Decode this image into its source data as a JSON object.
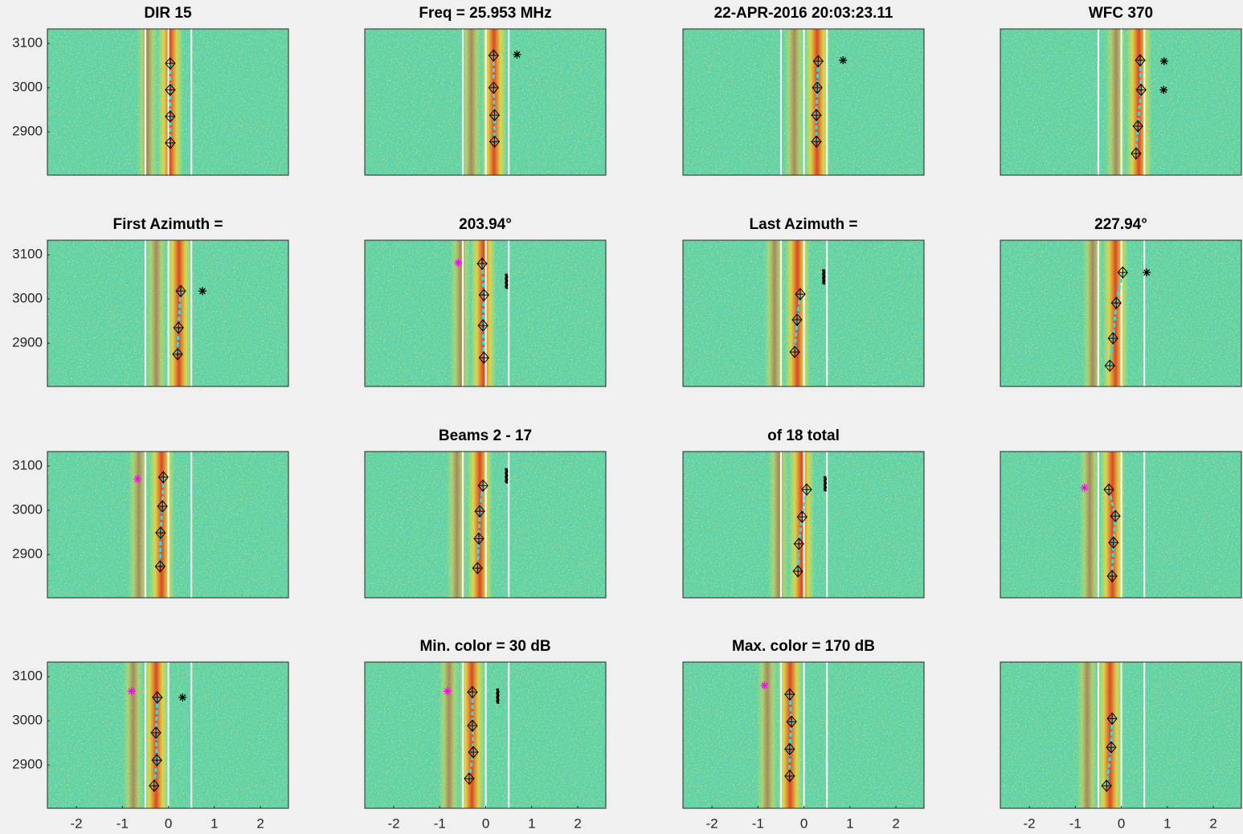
{
  "chart_data": [
    {
      "type": "scatter",
      "title": "DIR 15",
      "xlim": [
        -2.63,
        2.61
      ],
      "ylim": [
        2802,
        3133
      ],
      "yticks": [
        2900,
        3000,
        3100
      ],
      "vlines": [
        -0.5,
        0,
        0.5
      ],
      "vline_color": "#ffffff",
      "x": [
        0.04,
        0.04,
        0.04,
        0.04
      ],
      "y": [
        3055,
        2995,
        2935,
        2875
      ],
      "color": "#000000",
      "line_color": "#3fd6e6"
    },
    {
      "type": "scatter",
      "title": "Freq = 25.953 MHz",
      "xlim": [
        -2.63,
        2.61
      ],
      "ylim": [
        2802,
        3133
      ],
      "vlines": [
        -0.5,
        0,
        0.5
      ],
      "vline_color": "#ffffff",
      "x": [
        0.17,
        0.17,
        0.19,
        0.19
      ],
      "y": [
        3073,
        3000,
        2938,
        2878
      ],
      "color": "#000000",
      "line_color": "#3fd6e6",
      "markers": [
        {
          "marker": "asterisk",
          "color": "#000000",
          "x": [
            0.68
          ],
          "y": [
            3075
          ]
        }
      ]
    },
    {
      "type": "scatter",
      "title": "22-APR-2016 20:03:23.11",
      "xlim": [
        -2.63,
        2.61
      ],
      "ylim": [
        2802,
        3133
      ],
      "vlines": [
        -0.5,
        0,
        0.5
      ],
      "vline_color": "#ffffff",
      "x": [
        0.31,
        0.29,
        0.27,
        0.27
      ],
      "y": [
        3060,
        3000,
        2938,
        2878
      ],
      "color": "#000000",
      "line_color": "#3fd6e6",
      "markers": [
        {
          "marker": "asterisk",
          "color": "#000000",
          "x": [
            0.85
          ],
          "y": [
            3062
          ]
        }
      ]
    },
    {
      "type": "scatter",
      "title": "WFC 370",
      "xlim": [
        -2.63,
        2.61
      ],
      "ylim": [
        2802,
        3133
      ],
      "vlines": [
        -0.5,
        0,
        0.5
      ],
      "vline_color": "#ffffff",
      "x": [
        0.41,
        0.43,
        0.36,
        0.32
      ],
      "y": [
        3062,
        2995,
        2913,
        2851
      ],
      "color": "#000000",
      "line_color": "#3fd6e6",
      "markers": [
        {
          "marker": "asterisk",
          "color": "#000000",
          "x": [
            0.93,
            0.92
          ],
          "y": [
            3060,
            2995
          ]
        }
      ]
    },
    {
      "type": "scatter",
      "title": "First Azimuth  =",
      "xlim": [
        -2.63,
        2.61
      ],
      "ylim": [
        2802,
        3133
      ],
      "yticks": [
        2900,
        3000,
        3100
      ],
      "vlines": [
        -0.5,
        0,
        0.5
      ],
      "vline_color": "#ffffff",
      "x": [
        0.27,
        0.22,
        0.2
      ],
      "y": [
        3018,
        2935,
        2875
      ],
      "color": "#000000",
      "line_color": "#3fd6e6",
      "markers": [
        {
          "marker": "asterisk",
          "color": "#000000",
          "x": [
            0.74
          ],
          "y": [
            3018
          ]
        }
      ]
    },
    {
      "type": "scatter",
      "title": "203.94°",
      "xlim": [
        -2.63,
        2.61
      ],
      "ylim": [
        2802,
        3133
      ],
      "vlines": [
        -0.5,
        0,
        0.5
      ],
      "vline_color": "#ffffff",
      "x": [
        -0.08,
        -0.04,
        -0.06,
        -0.04
      ],
      "y": [
        3080,
        3009,
        2940,
        2867
      ],
      "color": "#000000",
      "line_color": "#3fd6e6",
      "markers": [
        {
          "marker": "asterisk",
          "color": "#ff00ff",
          "x": [
            -0.6
          ],
          "y": [
            3082
          ]
        },
        {
          "marker": "dot",
          "color": "#000000",
          "x": [
            0.45
          ],
          "y": [
            3040
          ]
        }
      ]
    },
    {
      "type": "scatter",
      "title": "Last Azimuth  =",
      "xlim": [
        -2.63,
        2.61
      ],
      "ylim": [
        2802,
        3133
      ],
      "vlines": [
        -0.5,
        0,
        0.5
      ],
      "vline_color": "#ffffff",
      "x": [
        -0.08,
        -0.15,
        -0.2
      ],
      "y": [
        3011,
        2953,
        2880
      ],
      "color": "#000000",
      "line_color": "#3fd6e6",
      "markers": [
        {
          "marker": "dot",
          "color": "#000000",
          "x": [
            0.43
          ],
          "y": [
            3050
          ]
        }
      ]
    },
    {
      "type": "scatter",
      "title": "227.94°",
      "xlim": [
        -2.63,
        2.61
      ],
      "ylim": [
        2802,
        3133
      ],
      "vlines": [
        -0.5,
        0,
        0.5
      ],
      "vline_color": "#ffffff",
      "x": [
        0.03,
        -0.11,
        -0.18,
        -0.25
      ],
      "y": [
        3060,
        2991,
        2911,
        2849
      ],
      "color": "#000000",
      "line_color": "#3fd6e6",
      "markers": [
        {
          "marker": "asterisk",
          "color": "#000000",
          "x": [
            0.55
          ],
          "y": [
            3060
          ]
        }
      ]
    },
    {
      "type": "scatter",
      "xlim": [
        -2.63,
        2.61
      ],
      "ylim": [
        2802,
        3133
      ],
      "yticks": [
        2900,
        3000,
        3100
      ],
      "vlines": [
        -0.5,
        0,
        0.5
      ],
      "vline_color": "#ffffff",
      "x": [
        -0.11,
        -0.13,
        -0.17,
        -0.18
      ],
      "y": [
        3075,
        3009,
        2949,
        2873
      ],
      "color": "#000000",
      "line_color": "#3fd6e6",
      "markers": [
        {
          "marker": "asterisk",
          "color": "#ff00ff",
          "x": [
            -0.67
          ],
          "y": [
            3071
          ]
        }
      ]
    },
    {
      "type": "scatter",
      "title": "Beams 2 - 17",
      "xlim": [
        -2.63,
        2.61
      ],
      "ylim": [
        2802,
        3133
      ],
      "vlines": [
        -0.5,
        0,
        0.5
      ],
      "vline_color": "#ffffff",
      "x": [
        -0.06,
        -0.13,
        -0.15,
        -0.18
      ],
      "y": [
        3056,
        2998,
        2936,
        2869
      ],
      "color": "#000000",
      "line_color": "#3fd6e6",
      "markers": [
        {
          "marker": "dot",
          "color": "#000000",
          "x": [
            0.45
          ],
          "y": [
            3078
          ]
        }
      ]
    },
    {
      "type": "scatter",
      "title": "of 18 total",
      "xlim": [
        -2.63,
        2.61
      ],
      "ylim": [
        2802,
        3133
      ],
      "vlines": [
        -0.5,
        0,
        0.5
      ],
      "vline_color": "#ffffff",
      "x": [
        0.06,
        -0.04,
        -0.11,
        -0.13
      ],
      "y": [
        3047,
        2985,
        2924,
        2862
      ],
      "color": "#000000",
      "line_color": "#3fd6e6",
      "markers": [
        {
          "marker": "dot",
          "color": "#000000",
          "x": [
            0.46
          ],
          "y": [
            3060
          ]
        }
      ]
    },
    {
      "type": "scatter",
      "xlim": [
        -2.63,
        2.61
      ],
      "ylim": [
        2802,
        3133
      ],
      "vlines": [
        -0.5,
        0,
        0.5
      ],
      "vline_color": "#ffffff",
      "x": [
        -0.27,
        -0.13,
        -0.17,
        -0.2
      ],
      "y": [
        3047,
        2987,
        2927,
        2851
      ],
      "color": "#000000",
      "line_color": "#3fd6e6",
      "markers": [
        {
          "marker": "asterisk",
          "color": "#ff00ff",
          "x": [
            -0.8
          ],
          "y": [
            3051
          ]
        }
      ]
    },
    {
      "type": "scatter",
      "xlim": [
        -2.63,
        2.61
      ],
      "ylim": [
        2802,
        3133
      ],
      "yticks": [
        2900,
        3000,
        3100
      ],
      "xticks": [
        -2,
        -1,
        0,
        1,
        2
      ],
      "vlines": [
        -0.5,
        0,
        0.5
      ],
      "vline_color": "#ffffff",
      "x": [
        -0.24,
        -0.27,
        -0.25,
        -0.31
      ],
      "y": [
        3053,
        2973,
        2911,
        2853
      ],
      "color": "#000000",
      "line_color": "#3fd6e6",
      "markers": [
        {
          "marker": "asterisk",
          "color": "#000000",
          "x": [
            0.31
          ],
          "y": [
            3053
          ]
        },
        {
          "marker": "asterisk",
          "color": "#ff00ff",
          "x": [
            -0.8
          ],
          "y": [
            3067
          ]
        }
      ]
    },
    {
      "type": "scatter",
      "title": "Min. color = 30 dB",
      "xlim": [
        -2.63,
        2.61
      ],
      "ylim": [
        2802,
        3133
      ],
      "xticks": [
        -2,
        -1,
        0,
        1,
        2
      ],
      "vlines": [
        -0.5,
        0,
        0.5
      ],
      "vline_color": "#ffffff",
      "x": [
        -0.29,
        -0.29,
        -0.27,
        -0.36
      ],
      "y": [
        3065,
        2989,
        2929,
        2869
      ],
      "color": "#000000",
      "line_color": "#3fd6e6",
      "markers": [
        {
          "marker": "asterisk",
          "color": "#ff00ff",
          "x": [
            -0.83
          ],
          "y": [
            3067
          ]
        },
        {
          "marker": "dot",
          "color": "#000000",
          "x": [
            0.26
          ],
          "y": [
            3056
          ]
        }
      ]
    },
    {
      "type": "scatter",
      "title": "Max. color = 170 dB",
      "xlim": [
        -2.63,
        2.61
      ],
      "ylim": [
        2802,
        3133
      ],
      "xticks": [
        -2,
        -1,
        0,
        1,
        2
      ],
      "vlines": [
        -0.5,
        0,
        0.5
      ],
      "vline_color": "#ffffff",
      "x": [
        -0.31,
        -0.27,
        -0.31,
        -0.31
      ],
      "y": [
        3060,
        2998,
        2936,
        2875
      ],
      "color": "#000000",
      "line_color": "#3fd6e6",
      "markers": [
        {
          "marker": "asterisk",
          "color": "#ff00ff",
          "x": [
            -0.86
          ],
          "y": [
            3080
          ]
        }
      ]
    },
    {
      "type": "scatter",
      "xlim": [
        -2.63,
        2.61
      ],
      "ylim": [
        2802,
        3133
      ],
      "xticks": [
        -2,
        -1,
        0,
        1,
        2
      ],
      "vlines": [
        -0.5,
        0,
        0.5
      ],
      "vline_color": "#ffffff",
      "x": [
        -0.2,
        -0.22,
        -0.32
      ],
      "y": [
        3005,
        2940,
        2853
      ],
      "color": "#000000",
      "line_color": "#3fd6e6"
    }
  ]
}
